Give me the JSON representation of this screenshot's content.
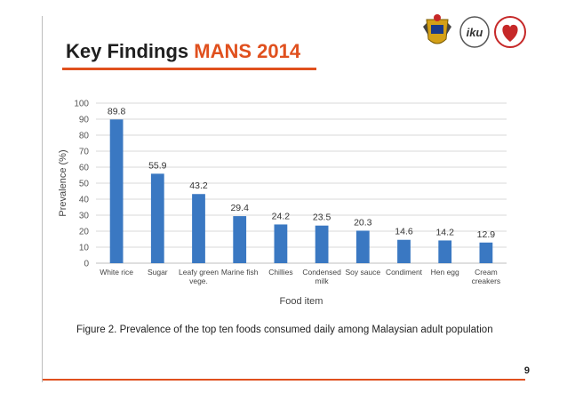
{
  "slide": {
    "title_main": "Key Findings ",
    "title_accent": "MANS 2014",
    "caption": "Figure 2. Prevalence of the top ten foods consumed daily among Malaysian adult population",
    "page_number": "9"
  },
  "colors": {
    "accent": "#e0501e",
    "bar": "#3a78c2"
  },
  "logos": [
    "crest-logo",
    "iku-logo",
    "heart-logo"
  ],
  "chart_data": {
    "type": "bar",
    "categories": [
      [
        "White rice"
      ],
      [
        "Sugar"
      ],
      [
        "Leafy green",
        "vege."
      ],
      [
        "Marine fish"
      ],
      [
        "Chillies"
      ],
      [
        "Condensed",
        "milk"
      ],
      [
        "Soy sauce"
      ],
      [
        "Condiment"
      ],
      [
        "Hen egg"
      ],
      [
        "Cream",
        "creakers"
      ]
    ],
    "values": [
      89.8,
      55.9,
      43.2,
      29.4,
      24.2,
      23.5,
      20.3,
      14.6,
      14.2,
      12.9
    ],
    "data_labels": [
      "89.8",
      "55.9",
      "43.2",
      "29.4",
      "24.2",
      "23.5",
      "20.3",
      "14.6",
      "14.2",
      "12.9"
    ],
    "xlabel": "Food item",
    "ylabel": "Prevalence (%)",
    "ylim": [
      0,
      100
    ],
    "yticks": [
      0,
      10,
      20,
      30,
      40,
      50,
      60,
      70,
      80,
      90,
      100
    ],
    "grid": true
  }
}
